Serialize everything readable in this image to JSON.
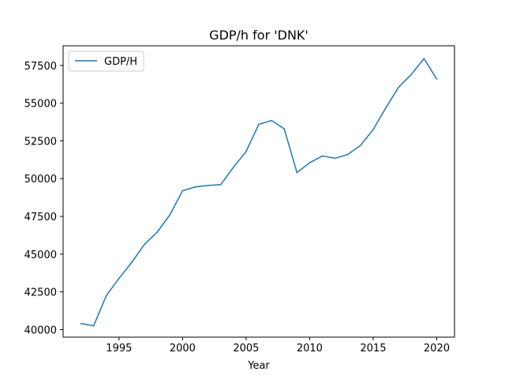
{
  "chart_data": {
    "type": "line",
    "title": "GDP/h for 'DNK'",
    "xlabel": "Year",
    "ylabel": "",
    "xlim": [
      1990.6,
      2021.4
    ],
    "ylim": [
      39500,
      58800
    ],
    "xticks": [
      1995,
      2000,
      2005,
      2010,
      2015,
      2020
    ],
    "yticks": [
      40000,
      42500,
      45000,
      47500,
      50000,
      52500,
      55000,
      57500
    ],
    "grid": false,
    "legend_position": "top-left",
    "series": [
      {
        "name": "GDP/H",
        "color": "#1f77b4",
        "x": [
          1992,
          1993,
          1994,
          1995,
          1996,
          1997,
          1998,
          1999,
          2000,
          2001,
          2002,
          2003,
          2004,
          2005,
          2006,
          2007,
          2008,
          2009,
          2010,
          2011,
          2012,
          2013,
          2014,
          2015,
          2016,
          2017,
          2018,
          2019,
          2020
        ],
        "values": [
          40400,
          40250,
          42250,
          43400,
          44450,
          45650,
          46450,
          47600,
          49200,
          49450,
          49550,
          49600,
          50750,
          51800,
          53600,
          53850,
          53300,
          50400,
          51050,
          51500,
          51350,
          51600,
          52200,
          53250,
          54700,
          56050,
          56900,
          57950,
          56600
        ]
      }
    ]
  }
}
